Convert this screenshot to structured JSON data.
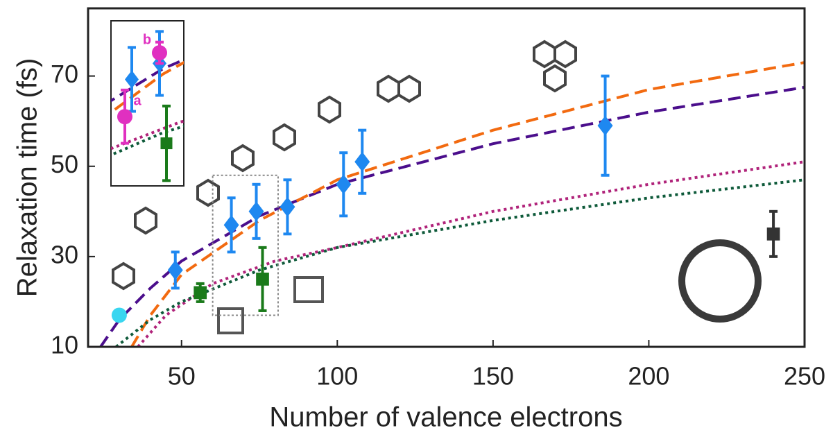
{
  "chart_data": {
    "type": "scatter",
    "xlabel": "Number of valence electrons",
    "ylabel": "Relaxation time (fs)",
    "xlim": [
      20,
      250
    ],
    "ylim": [
      10,
      85
    ],
    "xticks": [
      50,
      100,
      150,
      200,
      250
    ],
    "yticks": [
      10,
      30,
      50,
      70
    ],
    "series": [
      {
        "marker": "diamond",
        "color": "#1e88f0",
        "x": [
          48,
          66,
          74,
          84,
          102,
          108,
          186
        ],
        "values": [
          27,
          37,
          40,
          41,
          46,
          51,
          59
        ],
        "errors": [
          4,
          6,
          6,
          6,
          7,
          7,
          11
        ]
      },
      {
        "marker": "square",
        "color": "#1a7a1a",
        "x": [
          56,
          76
        ],
        "values": [
          22,
          25
        ],
        "errors": [
          2,
          7
        ]
      },
      {
        "marker": "square",
        "color": "#333333",
        "x": [
          240
        ],
        "values": [
          35
        ],
        "errors": [
          5
        ]
      },
      {
        "marker": "circle",
        "color": "#3ad6f0",
        "x": [
          30
        ],
        "values": [
          17
        ]
      }
    ],
    "curves": [
      {
        "style": "dashed",
        "color": "#4b0e8c",
        "x": [
          24,
          30,
          40,
          50,
          75,
          100,
          150,
          200,
          250
        ],
        "values": [
          10,
          16,
          23,
          29,
          39,
          46,
          55,
          62,
          67.5
        ]
      },
      {
        "style": "dashed",
        "color": "#f26a10",
        "x": [
          34,
          40,
          50,
          75,
          100,
          150,
          200,
          250
        ],
        "values": [
          10,
          17,
          26,
          38,
          47,
          58,
          67,
          73
        ]
      },
      {
        "style": "dotted",
        "color": "#b0237a",
        "x": [
          36,
          45,
          60,
          80,
          100,
          150,
          200,
          250
        ],
        "values": [
          10,
          17,
          24,
          29,
          32,
          40,
          46,
          51
        ]
      },
      {
        "style": "dotted",
        "color": "#0e5a3a",
        "x": [
          29,
          40,
          50,
          75,
          100,
          150,
          200,
          250
        ],
        "values": [
          10,
          16,
          20,
          27,
          32,
          38,
          43,
          47
        ]
      }
    ],
    "inset": {
      "xlim": [
        60,
        81
      ],
      "ylim": [
        17,
        48
      ],
      "color": "#e030c0",
      "points": [
        {
          "label": "a",
          "x": 64,
          "value": 30,
          "error": 5
        },
        {
          "label": "b",
          "x": 74,
          "value": 42,
          "error": 2
        }
      ]
    }
  }
}
